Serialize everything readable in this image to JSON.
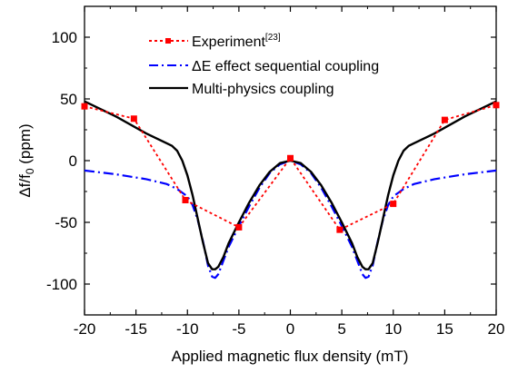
{
  "chart_data": {
    "type": "line",
    "title": "",
    "xlabel": "Applied magnetic flux density (mT)",
    "ylabel_main": "Δf/f",
    "ylabel_sub": "0",
    "ylabel_unit": " (ppm)",
    "xlim": [
      -20,
      20
    ],
    "ylim": [
      -125,
      125
    ],
    "xticks": [
      -20,
      -15,
      -10,
      -5,
      0,
      5,
      10,
      15,
      20
    ],
    "yticks": [
      -100,
      -50,
      0,
      50,
      100
    ],
    "grid": false,
    "legend_position": "top-center",
    "series": [
      {
        "name": "Experiment",
        "name_superscript": "[23]",
        "style": "dotted-square-markers",
        "color": "#ff0000",
        "x": [
          -20,
          -15.2,
          -10.2,
          -5,
          0,
          4.8,
          10,
          15,
          20
        ],
        "y": [
          44,
          34,
          -32,
          -54,
          2,
          -56,
          -35,
          33,
          45
        ]
      },
      {
        "name": "ΔE effect sequential coupling",
        "style": "dash-dot",
        "color": "#0000ff",
        "x": [
          -20,
          -17,
          -14,
          -12,
          -11,
          -10,
          -9.5,
          -9,
          -8.5,
          -8,
          -7.6,
          -7.3,
          -7,
          -6.5,
          -6,
          -5,
          -4,
          -3,
          -2,
          -1,
          0,
          1,
          2,
          3,
          4,
          5,
          6,
          6.5,
          7,
          7.3,
          7.6,
          8,
          8.5,
          9,
          9.5,
          10,
          11,
          12,
          14,
          17,
          20
        ],
        "y": [
          -8,
          -11,
          -15,
          -19,
          -23,
          -29,
          -36,
          -48,
          -65,
          -85,
          -94,
          -95,
          -92,
          -81,
          -70,
          -53,
          -37,
          -22,
          -10,
          -3,
          0,
          -3,
          -10,
          -22,
          -37,
          -53,
          -70,
          -81,
          -92,
          -95,
          -94,
          -85,
          -65,
          -48,
          -36,
          -29,
          -23,
          -19,
          -15,
          -11,
          -8
        ]
      },
      {
        "name": "Multi-physics coupling",
        "style": "solid",
        "color": "#000000",
        "x": [
          -20,
          -17,
          -14,
          -12,
          -11.5,
          -11,
          -10.5,
          -10,
          -9.5,
          -9,
          -8.5,
          -8,
          -7.6,
          -7.3,
          -7,
          -6.5,
          -6,
          -5,
          -4,
          -3,
          -2,
          -1,
          0,
          1,
          2,
          3,
          4,
          5,
          6,
          6.5,
          7,
          7.3,
          7.6,
          8,
          8.5,
          9,
          9.5,
          10,
          10.5,
          11,
          11.5,
          12,
          14,
          17,
          20
        ],
        "y": [
          48,
          36,
          22,
          14,
          12,
          8,
          0,
          -12,
          -28,
          -47,
          -66,
          -83,
          -88,
          -88,
          -86,
          -78,
          -67,
          -50,
          -34,
          -20,
          -9,
          -2,
          0,
          -2,
          -9,
          -20,
          -34,
          -50,
          -67,
          -78,
          -86,
          -88,
          -88,
          -83,
          -66,
          -47,
          -28,
          -12,
          0,
          8,
          12,
          14,
          22,
          36,
          48
        ]
      }
    ]
  }
}
